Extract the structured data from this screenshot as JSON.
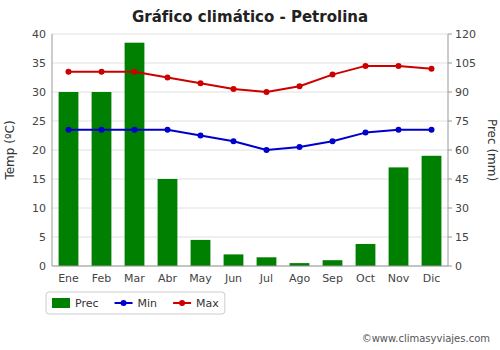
{
  "chart_data": {
    "type": "bar",
    "title": "Gráfico climático - Petrolina",
    "categories": [
      "Ene",
      "Feb",
      "Mar",
      "Abr",
      "May",
      "Jun",
      "Jul",
      "Ago",
      "Sep",
      "Oct",
      "Nov",
      "Dic"
    ],
    "series": [
      {
        "name": "Prec",
        "type": "bar",
        "axis": "y2",
        "color": "#008000",
        "values": [
          90.0,
          90.0,
          115.5,
          45.0,
          13.5,
          6.0,
          4.5,
          1.5,
          3.0,
          11.4,
          51.0,
          57.0
        ]
      },
      {
        "name": "Min",
        "type": "line",
        "color": "#0000cc",
        "marker": "circle",
        "values": [
          23.5,
          23.5,
          23.5,
          23.5,
          22.5,
          21.5,
          20.0,
          20.5,
          21.5,
          23.0,
          23.5,
          23.5
        ]
      },
      {
        "name": "Max",
        "type": "line",
        "color": "#cc0000",
        "marker": "circle",
        "values": [
          33.5,
          33.5,
          33.5,
          32.5,
          31.5,
          30.5,
          30.0,
          31.0,
          33.0,
          34.5,
          34.5,
          34.0
        ]
      }
    ],
    "ylim": [
      0,
      40
    ],
    "yticks": [
      0,
      5,
      10,
      15,
      20,
      25,
      30,
      35,
      40
    ],
    "y2lim": [
      0,
      120
    ],
    "y2ticks": [
      0,
      15,
      30,
      45,
      60,
      75,
      90,
      105,
      120
    ],
    "ylabel": "Temp (ºC)",
    "y2label": "Prec (mm)",
    "grid": true,
    "legend": "bottom",
    "annotations": [
      "©www.climasyviajes.com"
    ]
  }
}
